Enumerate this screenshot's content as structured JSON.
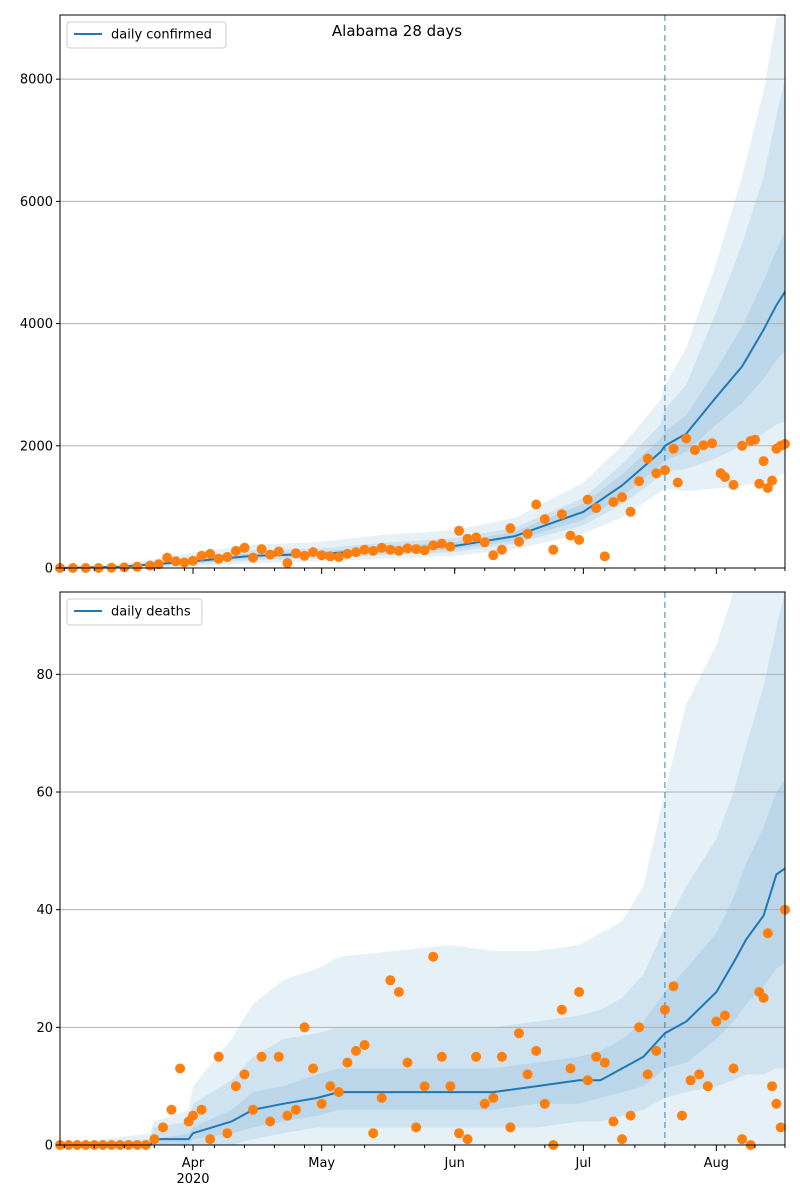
{
  "colors": {
    "median_line": "#1f77b4",
    "observed_points": "#ff7f0e",
    "band_fill": "#1f77b4",
    "vline": "#1f77b4",
    "grid": "#b0b0b0"
  },
  "chart_data": [
    {
      "type": "line",
      "title": "Alabama 28 days",
      "legend": {
        "label": "daily confirmed",
        "placement": "top-left"
      },
      "x_range": [
        "2020-03-01",
        "2020-08-17"
      ],
      "ylim": [
        0,
        9050
      ],
      "y_ticks": [
        0,
        2000,
        4000,
        6000,
        8000
      ],
      "grid": "horizontal",
      "forecast_start": "2020-07-20",
      "median": [
        [
          "2020-03-01",
          0
        ],
        [
          "2020-03-15",
          20
        ],
        [
          "2020-04-01",
          110
        ],
        [
          "2020-04-15",
          200
        ],
        [
          "2020-05-01",
          230
        ],
        [
          "2020-05-15",
          300
        ],
        [
          "2020-06-01",
          360
        ],
        [
          "2020-06-15",
          520
        ],
        [
          "2020-07-01",
          920
        ],
        [
          "2020-07-10",
          1350
        ],
        [
          "2020-07-19",
          1900
        ],
        [
          "2020-07-20",
          2000
        ],
        [
          "2020-07-25",
          2200
        ],
        [
          "2020-08-01",
          2800
        ],
        [
          "2020-08-07",
          3300
        ],
        [
          "2020-08-12",
          3900
        ],
        [
          "2020-08-15",
          4300
        ],
        [
          "2020-08-17",
          4520
        ]
      ],
      "bands": [
        {
          "lower": [
            0,
            0,
            20,
            80,
            110,
            150,
            200,
            310,
            560,
            830,
            1250,
            1300,
            1260,
            1300,
            1350,
            1400,
            1500,
            1550
          ],
          "upper": [
            0,
            60,
            250,
            380,
            430,
            540,
            620,
            820,
            1400,
            2000,
            2750,
            3000,
            3600,
            5000,
            6400,
            7800,
            9000,
            9050
          ]
        },
        {
          "lower": [
            0,
            5,
            55,
            130,
            160,
            210,
            260,
            400,
            700,
            1040,
            1500,
            1580,
            1620,
            1800,
            2000,
            2200,
            2350,
            2400
          ],
          "upper": [
            0,
            40,
            180,
            290,
            320,
            410,
            490,
            660,
            1150,
            1700,
            2350,
            2600,
            3000,
            4200,
            5300,
            6400,
            7400,
            8000
          ]
        },
        {
          "lower": [
            0,
            10,
            80,
            160,
            190,
            250,
            310,
            450,
            790,
            1170,
            1680,
            1760,
            1900,
            2350,
            2700,
            3100,
            3400,
            3550
          ],
          "upper": [
            0,
            30,
            140,
            240,
            270,
            350,
            420,
            590,
            1050,
            1530,
            2120,
            2240,
            2500,
            3250,
            3950,
            4700,
            5200,
            5500
          ]
        }
      ],
      "observed": [
        [
          "2020-03-01",
          0
        ],
        [
          "2020-03-04",
          0
        ],
        [
          "2020-03-07",
          0
        ],
        [
          "2020-03-10",
          0
        ],
        [
          "2020-03-13",
          5
        ],
        [
          "2020-03-16",
          10
        ],
        [
          "2020-03-19",
          20
        ],
        [
          "2020-03-22",
          40
        ],
        [
          "2020-03-24",
          60
        ],
        [
          "2020-03-26",
          170
        ],
        [
          "2020-03-28",
          110
        ],
        [
          "2020-03-30",
          90
        ],
        [
          "2020-04-01",
          120
        ],
        [
          "2020-04-03",
          200
        ],
        [
          "2020-04-05",
          230
        ],
        [
          "2020-04-07",
          150
        ],
        [
          "2020-04-09",
          180
        ],
        [
          "2020-04-11",
          280
        ],
        [
          "2020-04-13",
          330
        ],
        [
          "2020-04-15",
          170
        ],
        [
          "2020-04-17",
          310
        ],
        [
          "2020-04-19",
          220
        ],
        [
          "2020-04-21",
          270
        ],
        [
          "2020-04-23",
          80
        ],
        [
          "2020-04-25",
          240
        ],
        [
          "2020-04-27",
          200
        ],
        [
          "2020-04-29",
          260
        ],
        [
          "2020-05-01",
          210
        ],
        [
          "2020-05-03",
          190
        ],
        [
          "2020-05-05",
          180
        ],
        [
          "2020-05-07",
          230
        ],
        [
          "2020-05-09",
          260
        ],
        [
          "2020-05-11",
          300
        ],
        [
          "2020-05-13",
          280
        ],
        [
          "2020-05-15",
          330
        ],
        [
          "2020-05-17",
          300
        ],
        [
          "2020-05-19",
          280
        ],
        [
          "2020-05-21",
          320
        ],
        [
          "2020-05-23",
          310
        ],
        [
          "2020-05-25",
          290
        ],
        [
          "2020-05-27",
          370
        ],
        [
          "2020-05-29",
          400
        ],
        [
          "2020-05-31",
          350
        ],
        [
          "2020-06-02",
          610
        ],
        [
          "2020-06-04",
          480
        ],
        [
          "2020-06-06",
          500
        ],
        [
          "2020-06-08",
          420
        ],
        [
          "2020-06-10",
          210
        ],
        [
          "2020-06-12",
          300
        ],
        [
          "2020-06-14",
          650
        ],
        [
          "2020-06-16",
          430
        ],
        [
          "2020-06-18",
          560
        ],
        [
          "2020-06-20",
          1040
        ],
        [
          "2020-06-22",
          800
        ],
        [
          "2020-06-24",
          300
        ],
        [
          "2020-06-26",
          880
        ],
        [
          "2020-06-28",
          530
        ],
        [
          "2020-06-30",
          460
        ],
        [
          "2020-07-02",
          1120
        ],
        [
          "2020-07-04",
          980
        ],
        [
          "2020-07-06",
          190
        ],
        [
          "2020-07-08",
          1080
        ],
        [
          "2020-07-10",
          1160
        ],
        [
          "2020-07-12",
          920
        ],
        [
          "2020-07-14",
          1420
        ],
        [
          "2020-07-16",
          1790
        ],
        [
          "2020-07-18",
          1550
        ],
        [
          "2020-07-20",
          1600
        ],
        [
          "2020-07-22",
          1950
        ],
        [
          "2020-07-23",
          1400
        ],
        [
          "2020-07-25",
          2120
        ],
        [
          "2020-07-27",
          1930
        ],
        [
          "2020-07-29",
          2010
        ],
        [
          "2020-07-31",
          2040
        ],
        [
          "2020-08-02",
          1550
        ],
        [
          "2020-08-03",
          1490
        ],
        [
          "2020-08-05",
          1360
        ],
        [
          "2020-08-07",
          2000
        ],
        [
          "2020-08-09",
          2080
        ],
        [
          "2020-08-10",
          2100
        ],
        [
          "2020-08-11",
          1380
        ],
        [
          "2020-08-12",
          1750
        ],
        [
          "2020-08-13",
          1310
        ],
        [
          "2020-08-14",
          1430
        ],
        [
          "2020-08-15",
          1950
        ],
        [
          "2020-08-16",
          2000
        ],
        [
          "2020-08-17",
          2030
        ]
      ]
    },
    {
      "type": "line",
      "title": "",
      "legend": {
        "label": "daily deaths",
        "placement": "top-left"
      },
      "x_range": [
        "2020-03-01",
        "2020-08-17"
      ],
      "ylim": [
        0,
        94
      ],
      "y_ticks": [
        0,
        20,
        40,
        60,
        80
      ],
      "grid": "horizontal",
      "forecast_start": "2020-07-20",
      "median": [
        [
          "2020-03-01",
          0
        ],
        [
          "2020-03-22",
          0
        ],
        [
          "2020-03-23",
          1
        ],
        [
          "2020-03-31",
          1
        ],
        [
          "2020-04-01",
          2
        ],
        [
          "2020-04-10",
          4
        ],
        [
          "2020-04-15",
          6
        ],
        [
          "2020-04-22",
          7
        ],
        [
          "2020-04-30",
          8
        ],
        [
          "2020-05-05",
          9
        ],
        [
          "2020-05-31",
          9
        ],
        [
          "2020-06-10",
          9
        ],
        [
          "2020-06-20",
          10
        ],
        [
          "2020-06-30",
          11
        ],
        [
          "2020-07-05",
          11
        ],
        [
          "2020-07-10",
          13
        ],
        [
          "2020-07-15",
          15
        ],
        [
          "2020-07-20",
          19
        ],
        [
          "2020-07-25",
          21
        ],
        [
          "2020-08-01",
          26
        ],
        [
          "2020-08-05",
          31
        ],
        [
          "2020-08-08",
          35
        ],
        [
          "2020-08-12",
          39
        ],
        [
          "2020-08-15",
          46
        ],
        [
          "2020-08-17",
          47
        ]
      ],
      "bands": [
        {
          "lower": [
            0,
            0,
            0,
            0,
            0,
            0,
            0,
            0,
            0,
            0,
            0,
            0,
            0,
            0,
            0,
            0,
            0,
            0,
            0,
            0,
            0,
            0,
            0,
            0,
            0
          ],
          "upper": [
            0,
            2,
            4,
            6,
            10,
            18,
            24,
            28,
            30,
            32,
            34,
            33,
            33,
            34,
            36,
            38,
            44,
            60,
            75,
            85,
            94,
            94,
            94,
            94,
            94
          ]
        },
        {
          "lower": [
            0,
            0,
            0,
            0,
            0,
            0,
            1,
            2,
            3,
            3,
            3,
            3,
            3,
            4,
            4,
            5,
            6,
            8,
            9,
            10,
            11,
            12,
            12,
            13,
            13
          ],
          "upper": [
            0,
            1,
            3,
            4,
            7,
            11,
            15,
            18,
            19,
            20,
            20,
            20,
            21,
            22,
            23,
            25,
            29,
            37,
            44,
            52,
            60,
            68,
            78,
            88,
            94
          ]
        },
        {
          "lower": [
            0,
            0,
            0,
            0,
            1,
            2,
            3,
            4,
            5,
            6,
            6,
            6,
            7,
            7,
            8,
            9,
            10,
            13,
            14,
            18,
            21,
            24,
            27,
            30,
            31
          ],
          "upper": [
            0,
            0,
            1,
            2,
            3,
            6,
            9,
            10,
            12,
            13,
            13,
            13,
            14,
            15,
            16,
            18,
            21,
            26,
            30,
            36,
            42,
            48,
            54,
            60,
            62
          ]
        }
      ],
      "observed": [
        [
          "2020-03-01",
          0
        ],
        [
          "2020-03-03",
          0
        ],
        [
          "2020-03-05",
          0
        ],
        [
          "2020-03-07",
          0
        ],
        [
          "2020-03-09",
          0
        ],
        [
          "2020-03-11",
          0
        ],
        [
          "2020-03-13",
          0
        ],
        [
          "2020-03-15",
          0
        ],
        [
          "2020-03-17",
          0
        ],
        [
          "2020-03-19",
          0
        ],
        [
          "2020-03-21",
          0
        ],
        [
          "2020-03-23",
          1
        ],
        [
          "2020-03-25",
          3
        ],
        [
          "2020-03-27",
          6
        ],
        [
          "2020-03-29",
          13
        ],
        [
          "2020-03-31",
          4
        ],
        [
          "2020-04-01",
          5
        ],
        [
          "2020-04-03",
          6
        ],
        [
          "2020-04-05",
          1
        ],
        [
          "2020-04-07",
          15
        ],
        [
          "2020-04-09",
          2
        ],
        [
          "2020-04-11",
          10
        ],
        [
          "2020-04-13",
          12
        ],
        [
          "2020-04-15",
          6
        ],
        [
          "2020-04-17",
          15
        ],
        [
          "2020-04-19",
          4
        ],
        [
          "2020-04-21",
          15
        ],
        [
          "2020-04-23",
          5
        ],
        [
          "2020-04-25",
          6
        ],
        [
          "2020-04-27",
          20
        ],
        [
          "2020-04-29",
          13
        ],
        [
          "2020-05-01",
          7
        ],
        [
          "2020-05-03",
          10
        ],
        [
          "2020-05-05",
          9
        ],
        [
          "2020-05-07",
          14
        ],
        [
          "2020-05-09",
          16
        ],
        [
          "2020-05-11",
          17
        ],
        [
          "2020-05-13",
          2
        ],
        [
          "2020-05-15",
          8
        ],
        [
          "2020-05-17",
          28
        ],
        [
          "2020-05-19",
          26
        ],
        [
          "2020-05-21",
          14
        ],
        [
          "2020-05-23",
          3
        ],
        [
          "2020-05-25",
          10
        ],
        [
          "2020-05-27",
          32
        ],
        [
          "2020-05-29",
          15
        ],
        [
          "2020-05-31",
          10
        ],
        [
          "2020-06-02",
          2
        ],
        [
          "2020-06-04",
          1
        ],
        [
          "2020-06-06",
          15
        ],
        [
          "2020-06-08",
          7
        ],
        [
          "2020-06-10",
          8
        ],
        [
          "2020-06-12",
          15
        ],
        [
          "2020-06-14",
          3
        ],
        [
          "2020-06-16",
          19
        ],
        [
          "2020-06-18",
          12
        ],
        [
          "2020-06-20",
          16
        ],
        [
          "2020-06-22",
          7
        ],
        [
          "2020-06-24",
          0
        ],
        [
          "2020-06-26",
          23
        ],
        [
          "2020-06-28",
          13
        ],
        [
          "2020-06-30",
          26
        ],
        [
          "2020-07-02",
          11
        ],
        [
          "2020-07-04",
          15
        ],
        [
          "2020-07-06",
          14
        ],
        [
          "2020-07-08",
          4
        ],
        [
          "2020-07-10",
          1
        ],
        [
          "2020-07-12",
          5
        ],
        [
          "2020-07-14",
          20
        ],
        [
          "2020-07-16",
          12
        ],
        [
          "2020-07-18",
          16
        ],
        [
          "2020-07-20",
          23
        ],
        [
          "2020-07-22",
          27
        ],
        [
          "2020-07-24",
          5
        ],
        [
          "2020-07-26",
          11
        ],
        [
          "2020-07-28",
          12
        ],
        [
          "2020-07-30",
          10
        ],
        [
          "2020-08-01",
          21
        ],
        [
          "2020-08-03",
          22
        ],
        [
          "2020-08-05",
          13
        ],
        [
          "2020-08-07",
          1
        ],
        [
          "2020-08-09",
          0
        ],
        [
          "2020-08-11",
          26
        ],
        [
          "2020-08-12",
          25
        ],
        [
          "2020-08-13",
          36
        ],
        [
          "2020-08-14",
          10
        ],
        [
          "2020-08-15",
          7
        ],
        [
          "2020-08-16",
          3
        ],
        [
          "2020-08-17",
          40
        ]
      ]
    }
  ],
  "x_axis": {
    "tick_labels": [
      {
        "date": "2020-04-01",
        "label": "Apr",
        "sublabel": "2020"
      },
      {
        "date": "2020-05-01",
        "label": "May",
        "sublabel": ""
      },
      {
        "date": "2020-06-01",
        "label": "Jun",
        "sublabel": ""
      },
      {
        "date": "2020-07-01",
        "label": "Jul",
        "sublabel": ""
      },
      {
        "date": "2020-08-01",
        "label": "Aug",
        "sublabel": ""
      }
    ]
  }
}
